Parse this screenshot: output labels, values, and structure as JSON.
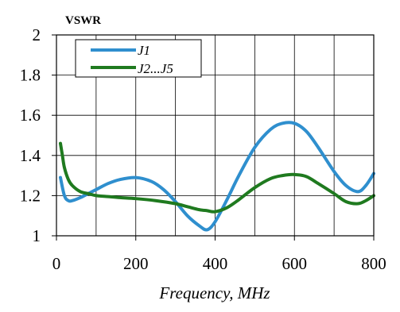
{
  "chart_data": {
    "type": "line",
    "title": "",
    "ylabel": "VSWR",
    "xlabel": "Frequency, MHz",
    "xlim": [
      0,
      800
    ],
    "ylim": [
      1,
      2
    ],
    "x_ticks": [
      0,
      200,
      400,
      600,
      800
    ],
    "x_tick_labels": [
      "0",
      "200",
      "400",
      "600",
      "800"
    ],
    "y_ticks": [
      1,
      1.2,
      1.4,
      1.6,
      1.8,
      2
    ],
    "y_tick_labels": [
      "1",
      "1.2",
      "1.4",
      "1.6",
      "1.8",
      "2"
    ],
    "x_gridlines": [
      100,
      200,
      300,
      400,
      500,
      600,
      700
    ],
    "y_gridlines": [
      1.2,
      1.4,
      1.6,
      1.8
    ],
    "grid": true,
    "legend_position": "top-left",
    "series": [
      {
        "name": "J1",
        "color": "#2f8fce",
        "x": [
          10,
          20,
          30,
          40,
          60,
          80,
          100,
          130,
          160,
          200,
          240,
          270,
          300,
          330,
          360,
          380,
          400,
          430,
          460,
          500,
          540,
          570,
          600,
          630,
          660,
          700,
          730,
          760,
          780,
          800
        ],
        "y": [
          1.29,
          1.2,
          1.175,
          1.175,
          1.19,
          1.21,
          1.23,
          1.26,
          1.28,
          1.29,
          1.27,
          1.23,
          1.17,
          1.1,
          1.05,
          1.03,
          1.07,
          1.18,
          1.3,
          1.44,
          1.53,
          1.56,
          1.56,
          1.52,
          1.44,
          1.32,
          1.25,
          1.22,
          1.25,
          1.31
        ]
      },
      {
        "name": "J2...J5",
        "color": "#1f7a1f",
        "x": [
          10,
          15,
          20,
          30,
          40,
          60,
          80,
          100,
          130,
          160,
          200,
          250,
          300,
          330,
          360,
          380,
          400,
          430,
          460,
          500,
          540,
          570,
          600,
          630,
          660,
          700,
          730,
          760,
          780,
          800
        ],
        "y": [
          1.46,
          1.4,
          1.34,
          1.28,
          1.25,
          1.22,
          1.21,
          1.2,
          1.195,
          1.19,
          1.185,
          1.175,
          1.16,
          1.145,
          1.13,
          1.125,
          1.12,
          1.14,
          1.18,
          1.24,
          1.285,
          1.3,
          1.305,
          1.295,
          1.26,
          1.21,
          1.17,
          1.16,
          1.175,
          1.2
        ]
      }
    ]
  }
}
